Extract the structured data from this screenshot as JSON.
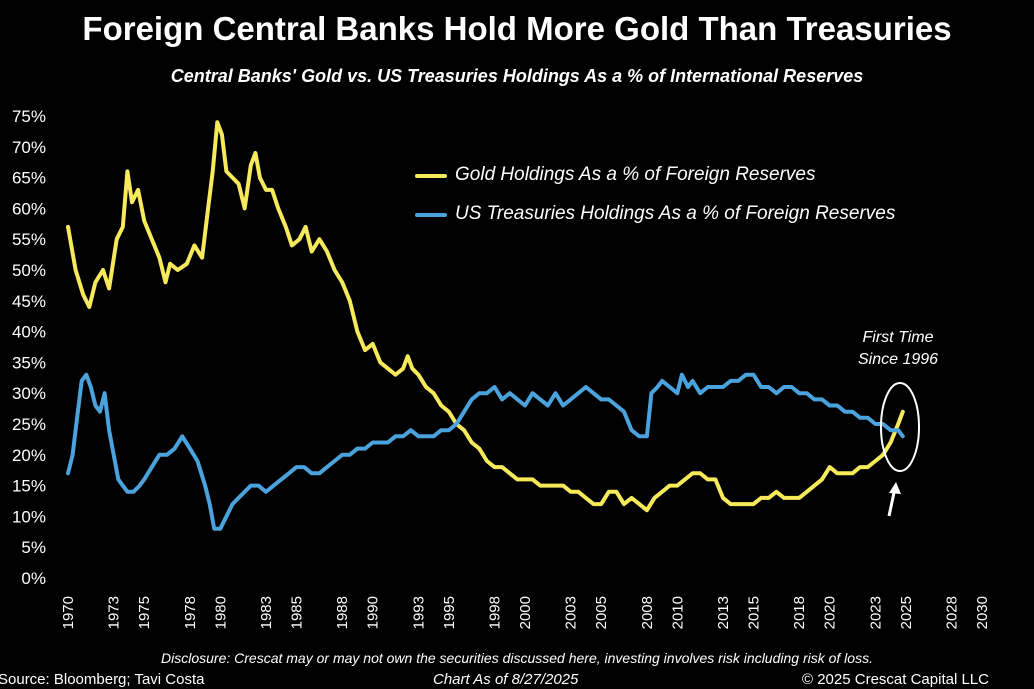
{
  "header": {
    "title": "Foreign Central Banks Hold More Gold Than Treasuries",
    "subtitle": "Central Banks' Gold vs. US Treasuries Holdings As a % of International Reserves"
  },
  "annotation": {
    "line1": "First Time",
    "line2": "Since 1996"
  },
  "footer": {
    "disclosure": "Disclosure: Crescat may or may not own the securities discussed here, investing involves risk including risk of loss.",
    "source": "Source: Bloomberg; Tavi Costa",
    "as_of": "Chart As of 8/27/2025",
    "copyright": "© 2025 Crescat Capital LLC"
  },
  "colors": {
    "gold": "#f7ea5a",
    "treasuries": "#4aa3dc",
    "background": "#000000"
  },
  "chart_data": {
    "type": "line",
    "title": "Foreign Central Banks Hold More Gold Than Treasuries",
    "subtitle": "Central Banks' Gold vs. US Treasuries Holdings As a % of International Reserves",
    "ylim": [
      0,
      75
    ],
    "xlim": [
      1970,
      2030
    ],
    "yticks": [
      "0%",
      "5%",
      "10%",
      "15%",
      "20%",
      "25%",
      "30%",
      "35%",
      "40%",
      "45%",
      "50%",
      "55%",
      "60%",
      "65%",
      "70%",
      "75%"
    ],
    "xticks": [
      "1970",
      "1973",
      "1975",
      "1978",
      "1980",
      "1983",
      "1985",
      "1988",
      "1990",
      "1993",
      "1995",
      "1998",
      "2000",
      "2003",
      "2005",
      "2008",
      "2010",
      "2013",
      "2015",
      "2018",
      "2020",
      "2023",
      "2025",
      "2028",
      "2030"
    ],
    "legend_position": "top-right",
    "grid": false,
    "series": [
      {
        "name": "Gold Holdings As a % of Foreign Reserves",
        "color": "#f7ea5a",
        "points": [
          [
            1970,
            57
          ],
          [
            1970.5,
            50
          ],
          [
            1971,
            46
          ],
          [
            1971.4,
            44
          ],
          [
            1971.8,
            48
          ],
          [
            1972.3,
            50
          ],
          [
            1972.7,
            47
          ],
          [
            1973.2,
            55
          ],
          [
            1973.6,
            57
          ],
          [
            1973.9,
            66
          ],
          [
            1974.2,
            61
          ],
          [
            1974.6,
            63
          ],
          [
            1975,
            58
          ],
          [
            1975.5,
            55
          ],
          [
            1976,
            52
          ],
          [
            1976.4,
            48
          ],
          [
            1976.7,
            51
          ],
          [
            1977.2,
            50
          ],
          [
            1977.8,
            51
          ],
          [
            1978.3,
            54
          ],
          [
            1978.8,
            52
          ],
          [
            1979.2,
            60
          ],
          [
            1979.5,
            66
          ],
          [
            1979.8,
            74
          ],
          [
            1980.1,
            72
          ],
          [
            1980.4,
            66
          ],
          [
            1980.8,
            65
          ],
          [
            1981.2,
            64
          ],
          [
            1981.6,
            60
          ],
          [
            1982,
            67
          ],
          [
            1982.3,
            69
          ],
          [
            1982.6,
            65
          ],
          [
            1983,
            63
          ],
          [
            1983.4,
            63
          ],
          [
            1983.8,
            60
          ],
          [
            1984.3,
            57
          ],
          [
            1984.7,
            54
          ],
          [
            1985.2,
            55
          ],
          [
            1985.6,
            57
          ],
          [
            1986,
            53
          ],
          [
            1986.5,
            55
          ],
          [
            1987,
            53
          ],
          [
            1987.5,
            50
          ],
          [
            1988,
            48
          ],
          [
            1988.5,
            45
          ],
          [
            1989,
            40
          ],
          [
            1989.5,
            37
          ],
          [
            1990,
            38
          ],
          [
            1990.5,
            35
          ],
          [
            1991,
            34
          ],
          [
            1991.5,
            33
          ],
          [
            1992,
            34
          ],
          [
            1992.3,
            36
          ],
          [
            1992.6,
            34
          ],
          [
            1993,
            33
          ],
          [
            1993.5,
            31
          ],
          [
            1994,
            30
          ],
          [
            1994.5,
            28
          ],
          [
            1995,
            27
          ],
          [
            1995.5,
            25
          ],
          [
            1996,
            24
          ],
          [
            1996.5,
            22
          ],
          [
            1997,
            21
          ],
          [
            1997.5,
            19
          ],
          [
            1998,
            18
          ],
          [
            1998.5,
            18
          ],
          [
            1999,
            17
          ],
          [
            1999.5,
            16
          ],
          [
            2000,
            16
          ],
          [
            2000.5,
            16
          ],
          [
            2001,
            15
          ],
          [
            2001.5,
            15
          ],
          [
            2002,
            15
          ],
          [
            2002.5,
            15
          ],
          [
            2003,
            14
          ],
          [
            2003.5,
            14
          ],
          [
            2004,
            13
          ],
          [
            2004.5,
            12
          ],
          [
            2005,
            12
          ],
          [
            2005.5,
            14
          ],
          [
            2006,
            14
          ],
          [
            2006.5,
            12
          ],
          [
            2007,
            13
          ],
          [
            2007.5,
            12
          ],
          [
            2008,
            11
          ],
          [
            2008.5,
            13
          ],
          [
            2009,
            14
          ],
          [
            2009.5,
            15
          ],
          [
            2010,
            15
          ],
          [
            2010.5,
            16
          ],
          [
            2011,
            17
          ],
          [
            2011.5,
            17
          ],
          [
            2012,
            16
          ],
          [
            2012.5,
            16
          ],
          [
            2013,
            13
          ],
          [
            2013.5,
            12
          ],
          [
            2014,
            12
          ],
          [
            2014.5,
            12
          ],
          [
            2015,
            12
          ],
          [
            2015.5,
            13
          ],
          [
            2016,
            13
          ],
          [
            2016.5,
            14
          ],
          [
            2017,
            13
          ],
          [
            2017.5,
            13
          ],
          [
            2018,
            13
          ],
          [
            2018.5,
            14
          ],
          [
            2019,
            15
          ],
          [
            2019.5,
            16
          ],
          [
            2020,
            18
          ],
          [
            2020.5,
            17
          ],
          [
            2021,
            17
          ],
          [
            2021.5,
            17
          ],
          [
            2022,
            18
          ],
          [
            2022.5,
            18
          ],
          [
            2023,
            19
          ],
          [
            2023.5,
            20
          ],
          [
            2024,
            22
          ],
          [
            2024.5,
            25
          ],
          [
            2024.8,
            27
          ]
        ]
      },
      {
        "name": "US Treasuries Holdings As a % of Foreign Reserves",
        "color": "#4aa3dc",
        "points": [
          [
            1970,
            17
          ],
          [
            1970.3,
            20
          ],
          [
            1970.6,
            26
          ],
          [
            1970.9,
            32
          ],
          [
            1971.2,
            33
          ],
          [
            1971.5,
            31
          ],
          [
            1971.8,
            28
          ],
          [
            1972.1,
            27
          ],
          [
            1972.4,
            30
          ],
          [
            1972.7,
            24
          ],
          [
            1973,
            20
          ],
          [
            1973.3,
            16
          ],
          [
            1973.6,
            15
          ],
          [
            1973.9,
            14
          ],
          [
            1974.3,
            14
          ],
          [
            1974.7,
            15
          ],
          [
            1975,
            16
          ],
          [
            1975.5,
            18
          ],
          [
            1976,
            20
          ],
          [
            1976.5,
            20
          ],
          [
            1977,
            21
          ],
          [
            1977.5,
            23
          ],
          [
            1978,
            21
          ],
          [
            1978.5,
            19
          ],
          [
            1979,
            15
          ],
          [
            1979.3,
            12
          ],
          [
            1979.6,
            8
          ],
          [
            1980,
            8
          ],
          [
            1980.4,
            10
          ],
          [
            1980.8,
            12
          ],
          [
            1981.2,
            13
          ],
          [
            1981.6,
            14
          ],
          [
            1982,
            15
          ],
          [
            1982.5,
            15
          ],
          [
            1983,
            14
          ],
          [
            1983.5,
            15
          ],
          [
            1984,
            16
          ],
          [
            1984.5,
            17
          ],
          [
            1985,
            18
          ],
          [
            1985.5,
            18
          ],
          [
            1986,
            17
          ],
          [
            1986.5,
            17
          ],
          [
            1987,
            18
          ],
          [
            1987.5,
            19
          ],
          [
            1988,
            20
          ],
          [
            1988.5,
            20
          ],
          [
            1989,
            21
          ],
          [
            1989.5,
            21
          ],
          [
            1990,
            22
          ],
          [
            1990.5,
            22
          ],
          [
            1991,
            22
          ],
          [
            1991.5,
            23
          ],
          [
            1992,
            23
          ],
          [
            1992.5,
            24
          ],
          [
            1993,
            23
          ],
          [
            1993.5,
            23
          ],
          [
            1994,
            23
          ],
          [
            1994.5,
            24
          ],
          [
            1995,
            24
          ],
          [
            1995.5,
            25
          ],
          [
            1996,
            27
          ],
          [
            1996.5,
            29
          ],
          [
            1997,
            30
          ],
          [
            1997.5,
            30
          ],
          [
            1998,
            31
          ],
          [
            1998.5,
            29
          ],
          [
            1999,
            30
          ],
          [
            1999.5,
            29
          ],
          [
            2000,
            28
          ],
          [
            2000.5,
            30
          ],
          [
            2001,
            29
          ],
          [
            2001.5,
            28
          ],
          [
            2002,
            30
          ],
          [
            2002.5,
            28
          ],
          [
            2003,
            29
          ],
          [
            2003.5,
            30
          ],
          [
            2004,
            31
          ],
          [
            2004.5,
            30
          ],
          [
            2005,
            29
          ],
          [
            2005.5,
            29
          ],
          [
            2006,
            28
          ],
          [
            2006.5,
            27
          ],
          [
            2007,
            24
          ],
          [
            2007.5,
            23
          ],
          [
            2008,
            23
          ],
          [
            2008.3,
            30
          ],
          [
            2008.7,
            31
          ],
          [
            2009,
            32
          ],
          [
            2009.5,
            31
          ],
          [
            2010,
            30
          ],
          [
            2010.3,
            33
          ],
          [
            2010.7,
            31
          ],
          [
            2011,
            32
          ],
          [
            2011.5,
            30
          ],
          [
            2012,
            31
          ],
          [
            2012.5,
            31
          ],
          [
            2013,
            31
          ],
          [
            2013.5,
            32
          ],
          [
            2014,
            32
          ],
          [
            2014.5,
            33
          ],
          [
            2015,
            33
          ],
          [
            2015.5,
            31
          ],
          [
            2016,
            31
          ],
          [
            2016.5,
            30
          ],
          [
            2017,
            31
          ],
          [
            2017.5,
            31
          ],
          [
            2018,
            30
          ],
          [
            2018.5,
            30
          ],
          [
            2019,
            29
          ],
          [
            2019.5,
            29
          ],
          [
            2020,
            28
          ],
          [
            2020.5,
            28
          ],
          [
            2021,
            27
          ],
          [
            2021.5,
            27
          ],
          [
            2022,
            26
          ],
          [
            2022.5,
            26
          ],
          [
            2023,
            25
          ],
          [
            2023.5,
            25
          ],
          [
            2024,
            24
          ],
          [
            2024.5,
            24
          ],
          [
            2024.8,
            23
          ]
        ]
      }
    ]
  }
}
